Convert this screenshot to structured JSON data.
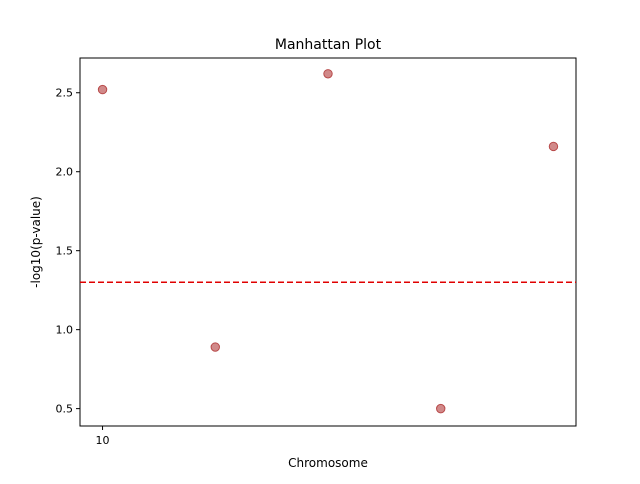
{
  "chart_data": {
    "type": "scatter",
    "title": "Manhattan Plot",
    "xlabel": "Chromosome",
    "ylabel": "-log10(p-value)",
    "x_ticks": [
      {
        "value": 0,
        "label": "10"
      }
    ],
    "y_ticks": [
      0.5,
      1.0,
      1.5,
      2.0,
      2.5
    ],
    "xlim": [
      -0.2,
      4.2
    ],
    "ylim": [
      0.39,
      2.72
    ],
    "grid": false,
    "points": [
      {
        "x": 0,
        "y": 2.52
      },
      {
        "x": 1,
        "y": 0.89
      },
      {
        "x": 2,
        "y": 2.62
      },
      {
        "x": 3,
        "y": 0.5
      },
      {
        "x": 4,
        "y": 2.16
      }
    ],
    "threshold": {
      "y": 1.3,
      "style": "dashed",
      "color": "#e00000"
    },
    "point_color": "#b84a4a"
  }
}
